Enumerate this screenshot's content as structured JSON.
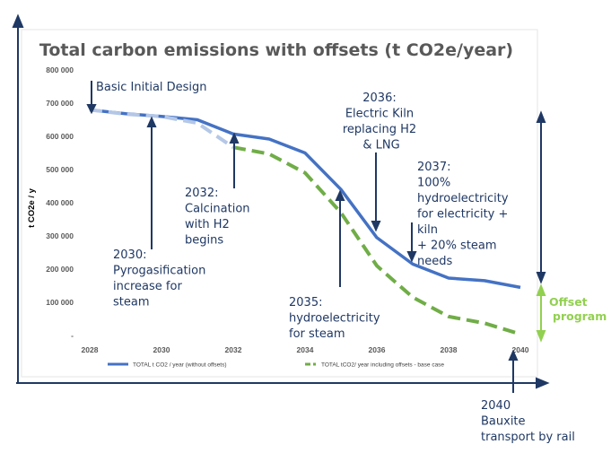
{
  "chart_data": {
    "type": "line",
    "title": "Total carbon emissions with offsets (t CO2e/year)",
    "ylabel": "t CO2e / y",
    "xlabel": "",
    "x_ticks": [
      "2028",
      "2030",
      "2032",
      "2034",
      "2036",
      "2038",
      "2040"
    ],
    "y_ticks": [
      "800 000",
      "700 000",
      "600 000",
      "500 000",
      "400 000",
      "300 000",
      "200 000",
      "100 000",
      "-"
    ],
    "ylim": [
      0,
      800000
    ],
    "xlim": [
      2028,
      2040
    ],
    "grid": false,
    "legend_position": "bottom",
    "series": [
      {
        "name": "TOTAL t CO2 / year (without offsets)",
        "color": "#4472c4",
        "style": "solid",
        "x": [
          2028,
          2029,
          2030,
          2031,
          2032,
          2033,
          2034,
          2035,
          2036,
          2037,
          2038,
          2039,
          2040
        ],
        "values": [
          680000,
          668000,
          660000,
          650000,
          607000,
          592000,
          550000,
          440000,
          295000,
          215000,
          173000,
          165000,
          145000
        ]
      },
      {
        "name": "TOTAL tCO2/ year including offsets - base case",
        "color": "#70ad47",
        "style": "dashed",
        "x": [
          2028,
          2029,
          2030,
          2031,
          2032,
          2033,
          2034,
          2035,
          2036,
          2037,
          2038,
          2039,
          2040
        ],
        "values": [
          680000,
          667000,
          660000,
          640000,
          567000,
          547000,
          490000,
          370000,
          210000,
          115000,
          57000,
          37000,
          4000
        ]
      }
    ],
    "annotations": [
      "Basic Initial Design",
      "2030:\nPyrogasification\nincrease for\nsteam",
      "2032:\nCalcination\nwith H2\nbegins",
      "2035:\nhydroelectricity\nfor steam",
      "2036:\nElectric Kiln\nreplacing H2\n & LNG",
      "2037:\n100%\nhydroelectricity\nfor electricity +\nkiln\n+ 20% steam\nneeds",
      "2040\nBauxite\ntransport by rail"
    ],
    "offset_label": "Offset\nprogram"
  },
  "colors": {
    "annotation_text": "#1f3864",
    "axis_arrows": "#1f3864",
    "offset_text": "#92d050",
    "early_dash": "#b4c7e7"
  }
}
